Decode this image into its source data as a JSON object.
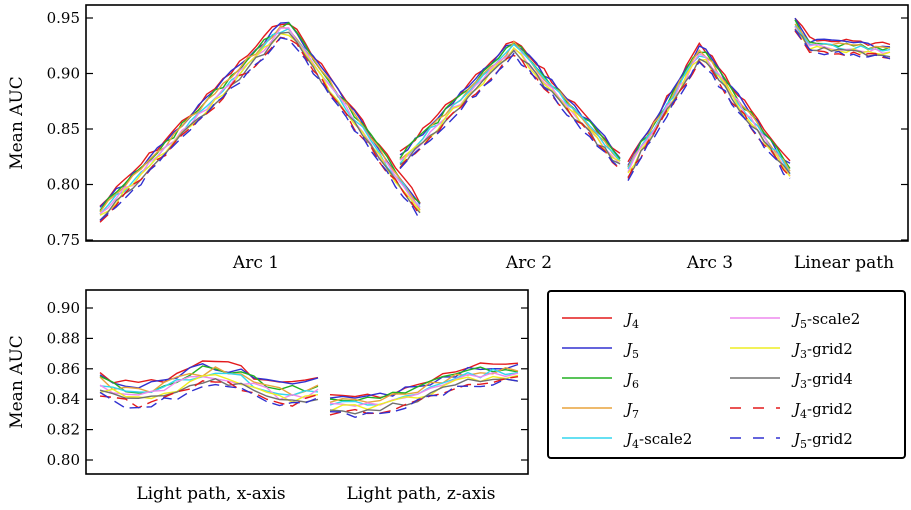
{
  "chart_data": [
    {
      "type": "line",
      "ylabel": "Mean AUC",
      "ylim": [
        0.75,
        0.955
      ],
      "yticks": [
        "0.75",
        "0.80",
        "0.85",
        "0.90",
        "0.95"
      ],
      "groups": [
        "Arc 1",
        "Arc 2",
        "Arc 3",
        "Linear path"
      ],
      "grid": false
    },
    {
      "type": "line",
      "ylabel": "Mean AUC",
      "ylim": [
        0.795,
        0.905
      ],
      "yticks": [
        "0.80",
        "0.82",
        "0.84",
        "0.86",
        "0.88",
        "0.90"
      ],
      "groups": [
        "Light path, x-axis",
        "Light path, z-axis"
      ],
      "grid": false
    }
  ],
  "legend": {
    "placement": "lower-right",
    "entries": [
      {
        "sym": "J",
        "sub": "4",
        "suffix": "",
        "color": "#e31a1c",
        "dash": "solid"
      },
      {
        "sym": "J",
        "sub": "5",
        "suffix": "",
        "color": "#3030d0",
        "dash": "solid"
      },
      {
        "sym": "J",
        "sub": "6",
        "suffix": "",
        "color": "#22b022",
        "dash": "solid"
      },
      {
        "sym": "J",
        "sub": "7",
        "suffix": "",
        "color": "#e8a33c",
        "dash": "solid"
      },
      {
        "sym": "J",
        "sub": "4",
        "suffix": "-scale2",
        "color": "#33d6ee",
        "dash": "solid"
      },
      {
        "sym": "J",
        "sub": "5",
        "suffix": "-scale2",
        "color": "#ee88ee",
        "dash": "solid"
      },
      {
        "sym": "J",
        "sub": "3",
        "suffix": "-grid2",
        "color": "#eeee22",
        "dash": "solid"
      },
      {
        "sym": "J",
        "sub": "3",
        "suffix": "-grid4",
        "color": "#707070",
        "dash": "solid"
      },
      {
        "sym": "J",
        "sub": "4",
        "suffix": "-grid2",
        "color": "#e31a1c",
        "dash": "dashed"
      },
      {
        "sym": "J",
        "sub": "5",
        "suffix": "-grid2",
        "color": "#3030d0",
        "dash": "dashed"
      }
    ]
  }
}
